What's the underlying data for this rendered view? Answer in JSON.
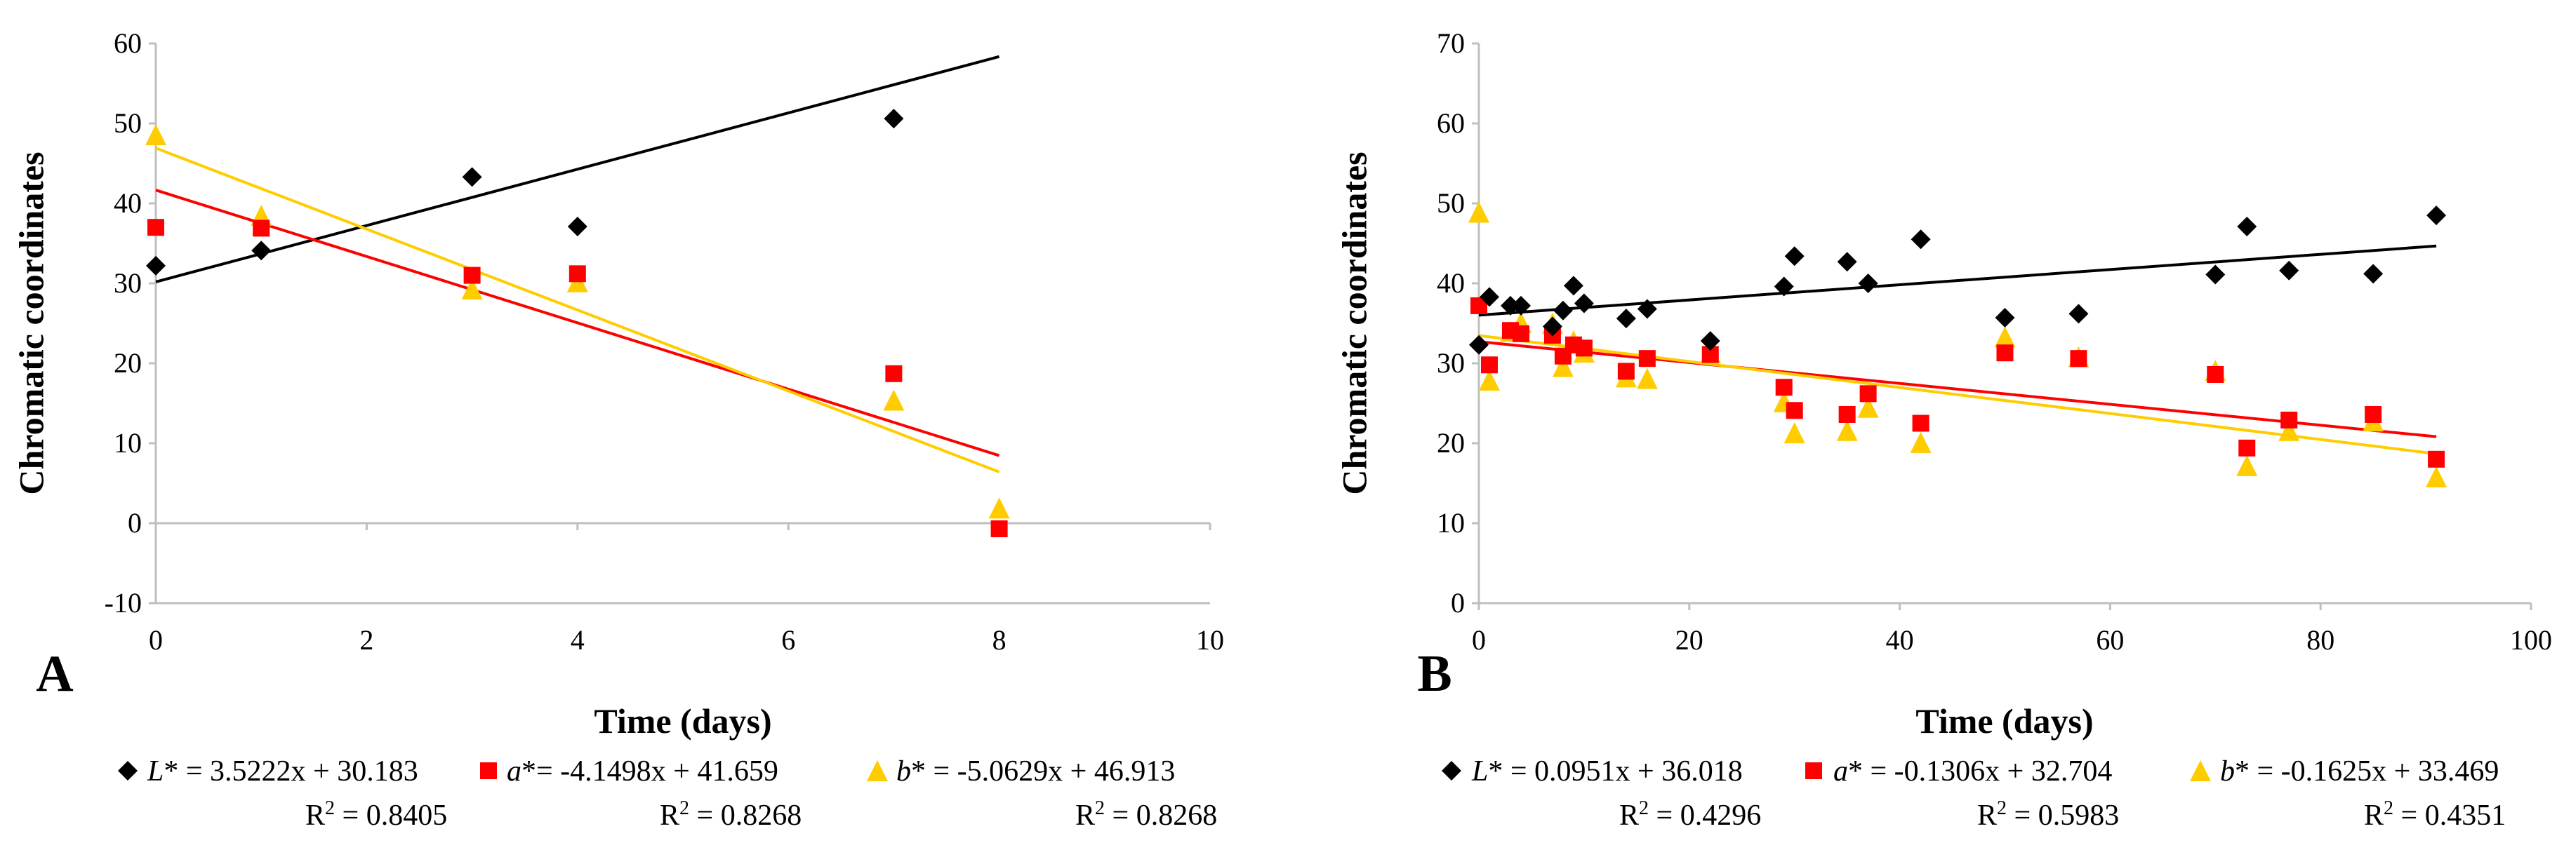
{
  "chart_data": [
    {
      "type": "scatter",
      "panel_label": "A",
      "ylabel": "Chromatic coordinates",
      "xlabel": "Time (days)",
      "xlim": [
        0,
        10
      ],
      "ylim": [
        -10,
        60
      ],
      "xticks": [
        "0",
        "2",
        "4",
        "6",
        "8",
        "10"
      ],
      "yticks": [
        "-10",
        "0",
        "10",
        "20",
        "30",
        "40",
        "50",
        "60"
      ],
      "grid": false,
      "series": [
        {
          "name": "L*",
          "color": "#000000",
          "marker": "diamond",
          "points": [
            [
              0,
              32.2
            ],
            [
              1,
              34.1
            ],
            [
              3,
              43.3
            ],
            [
              4,
              37.1
            ],
            [
              7,
              50.6
            ]
          ],
          "fit": {
            "slope": 3.5222,
            "intercept": 30.183,
            "x_range": [
              0,
              8
            ]
          },
          "legend_prefix": "L",
          "legend_suffix": "* = 3.5222x + 30.183",
          "r2_label": "R",
          "r2_value": "2",
          "r2_rest": " = 0.8405"
        },
        {
          "name": "a*",
          "color": "#ff0000",
          "marker": "square",
          "points": [
            [
              0,
              37.0
            ],
            [
              1,
              36.9
            ],
            [
              3,
              31.0
            ],
            [
              4,
              31.2
            ],
            [
              7,
              18.7
            ],
            [
              8,
              -0.7
            ]
          ],
          "fit": {
            "slope": -4.1498,
            "intercept": 41.659,
            "x_range": [
              0,
              8
            ]
          },
          "legend_prefix": "a",
          "legend_suffix": "*= -4.1498x + 41.659",
          "r2_label": "R",
          "r2_value": "2",
          "r2_rest": " = 0.8268"
        },
        {
          "name": "b*",
          "color": "#ffcc00",
          "marker": "triangle",
          "points": [
            [
              0,
              48.6
            ],
            [
              1,
              38.5
            ],
            [
              3,
              29.3
            ],
            [
              4,
              30.2
            ],
            [
              7,
              15.4
            ],
            [
              8,
              1.9
            ]
          ],
          "fit": {
            "slope": -5.0629,
            "intercept": 46.913,
            "x_range": [
              0,
              8
            ]
          },
          "legend_prefix": "b",
          "legend_suffix": "* = -5.0629x + 46.913",
          "r2_label": "R",
          "r2_value": "2",
          "r2_rest": " = 0.8268"
        }
      ]
    },
    {
      "type": "scatter",
      "panel_label": "B",
      "ylabel": "Chromatic coordinates",
      "xlabel": "Time (days)",
      "xlim": [
        0,
        100
      ],
      "ylim": [
        0,
        70
      ],
      "xticks": [
        "0",
        "20",
        "40",
        "60",
        "80",
        "100"
      ],
      "yticks": [
        "0",
        "10",
        "20",
        "30",
        "40",
        "50",
        "60",
        "70"
      ],
      "grid": false,
      "series": [
        {
          "name": "L*",
          "color": "#000000",
          "marker": "diamond",
          "points": [
            [
              0,
              32.3
            ],
            [
              1,
              38.3
            ],
            [
              3,
              37.2
            ],
            [
              4,
              37.2
            ],
            [
              7,
              34.6
            ],
            [
              8,
              36.6
            ],
            [
              9,
              39.7
            ],
            [
              10,
              37.5
            ],
            [
              14,
              35.6
            ],
            [
              16,
              36.8
            ],
            [
              22,
              32.8
            ],
            [
              29,
              39.6
            ],
            [
              30,
              43.4
            ],
            [
              35,
              42.7
            ],
            [
              37,
              40.0
            ],
            [
              42,
              45.5
            ],
            [
              50,
              35.7
            ],
            [
              57,
              36.2
            ],
            [
              70,
              41.1
            ],
            [
              73,
              47.1
            ],
            [
              77,
              41.6
            ],
            [
              85,
              41.2
            ],
            [
              91,
              48.5
            ]
          ],
          "fit": {
            "slope": 0.0951,
            "intercept": 36.018,
            "x_range": [
              0,
              91
            ]
          },
          "legend_prefix": "L",
          "legend_suffix": "* = 0.0951x + 36.018",
          "r2_label": "R",
          "r2_value": "2",
          "r2_rest": " = 0.4296"
        },
        {
          "name": "a*",
          "color": "#ff0000",
          "marker": "square",
          "points": [
            [
              0,
              37.2
            ],
            [
              1,
              29.8
            ],
            [
              3,
              34.1
            ],
            [
              4,
              33.7
            ],
            [
              7,
              33.5
            ],
            [
              8,
              30.9
            ],
            [
              9,
              32.3
            ],
            [
              10,
              31.9
            ],
            [
              14,
              29.0
            ],
            [
              16,
              30.6
            ],
            [
              22,
              31.1
            ],
            [
              29,
              27.0
            ],
            [
              30,
              24.1
            ],
            [
              35,
              23.6
            ],
            [
              37,
              26.2
            ],
            [
              42,
              22.5
            ],
            [
              50,
              31.3
            ],
            [
              57,
              30.6
            ],
            [
              70,
              28.6
            ],
            [
              73,
              19.4
            ],
            [
              77,
              22.9
            ],
            [
              85,
              23.6
            ],
            [
              91,
              18.0
            ]
          ],
          "fit": {
            "slope": -0.1306,
            "intercept": 32.704,
            "x_range": [
              0,
              91
            ]
          },
          "legend_prefix": "a",
          "legend_suffix": "* = -0.1306x + 32.704",
          "r2_label": "R",
          "r2_value": "2",
          "r2_rest": " = 0.5983"
        },
        {
          "name": "b*",
          "color": "#ffcc00",
          "marker": "triangle",
          "points": [
            [
              0,
              48.9
            ],
            [
              1,
              27.9
            ],
            [
              3,
              34.0
            ],
            [
              4,
              35.1
            ],
            [
              7,
              35.0
            ],
            [
              8,
              29.6
            ],
            [
              9,
              32.8
            ],
            [
              10,
              31.4
            ],
            [
              14,
              28.3
            ],
            [
              16,
              28.1
            ],
            [
              22,
              31.3
            ],
            [
              29,
              25.2
            ],
            [
              30,
              21.3
            ],
            [
              35,
              21.6
            ],
            [
              37,
              24.5
            ],
            [
              42,
              20.1
            ],
            [
              50,
              33.3
            ],
            [
              57,
              30.8
            ],
            [
              70,
              29.1
            ],
            [
              73,
              17.2
            ],
            [
              77,
              21.6
            ],
            [
              85,
              22.8
            ],
            [
              91,
              15.8
            ]
          ],
          "fit": {
            "slope": -0.1625,
            "intercept": 33.469,
            "x_range": [
              0,
              91
            ]
          },
          "legend_prefix": "b",
          "legend_suffix": "* = -0.1625x + 33.469",
          "r2_label": "R",
          "r2_value": "2",
          "r2_rest": " = 0.4351"
        }
      ]
    }
  ]
}
